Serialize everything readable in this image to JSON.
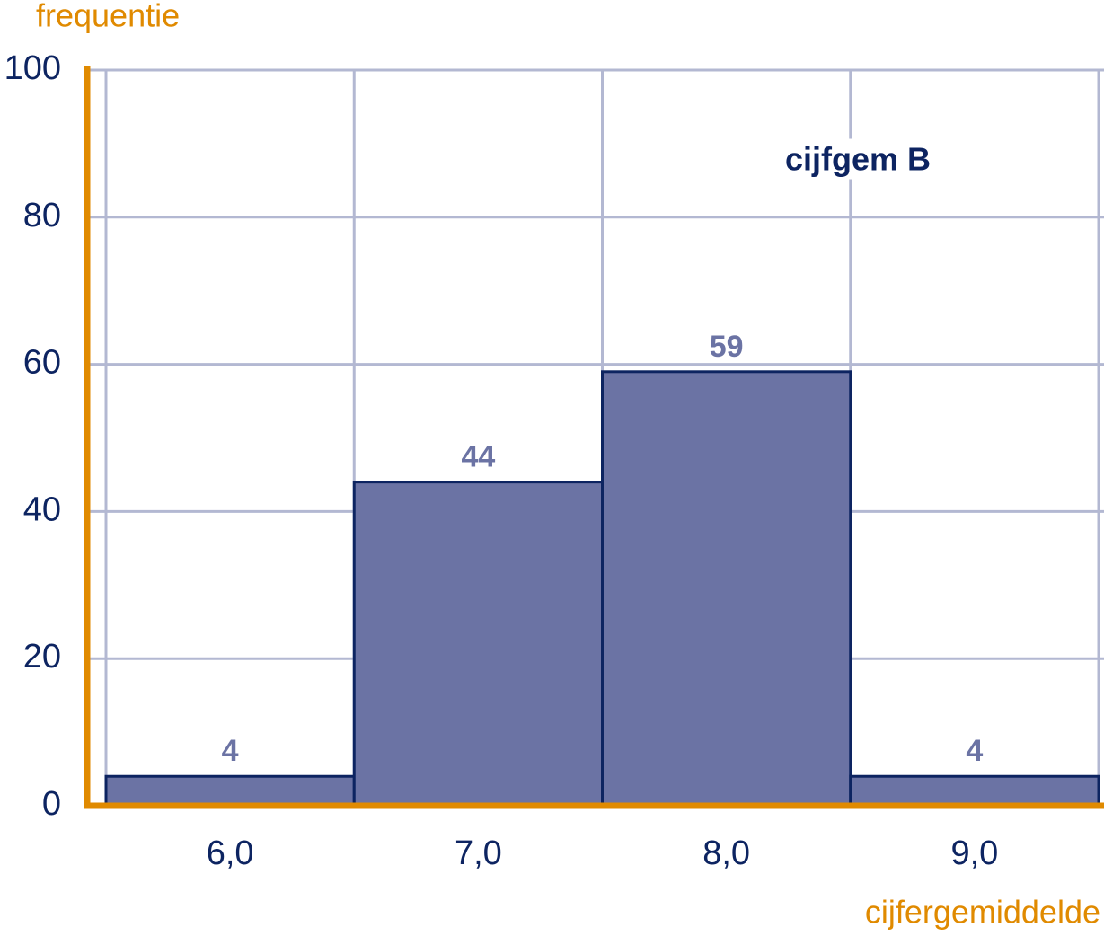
{
  "chart_data": {
    "type": "bar",
    "y_label": "frequentie",
    "x_label": "cijfergemiddelde",
    "annotation": "cijfgem B",
    "categories": [
      "6,0",
      "7,0",
      "8,0",
      "9,0"
    ],
    "values": [
      4,
      44,
      59,
      4
    ],
    "color": "#6b73a4",
    "edge_color": "#0d2461",
    "ylim": [
      0,
      100
    ],
    "yticks": [
      0,
      20,
      40,
      60,
      80,
      100
    ],
    "grid": true
  }
}
